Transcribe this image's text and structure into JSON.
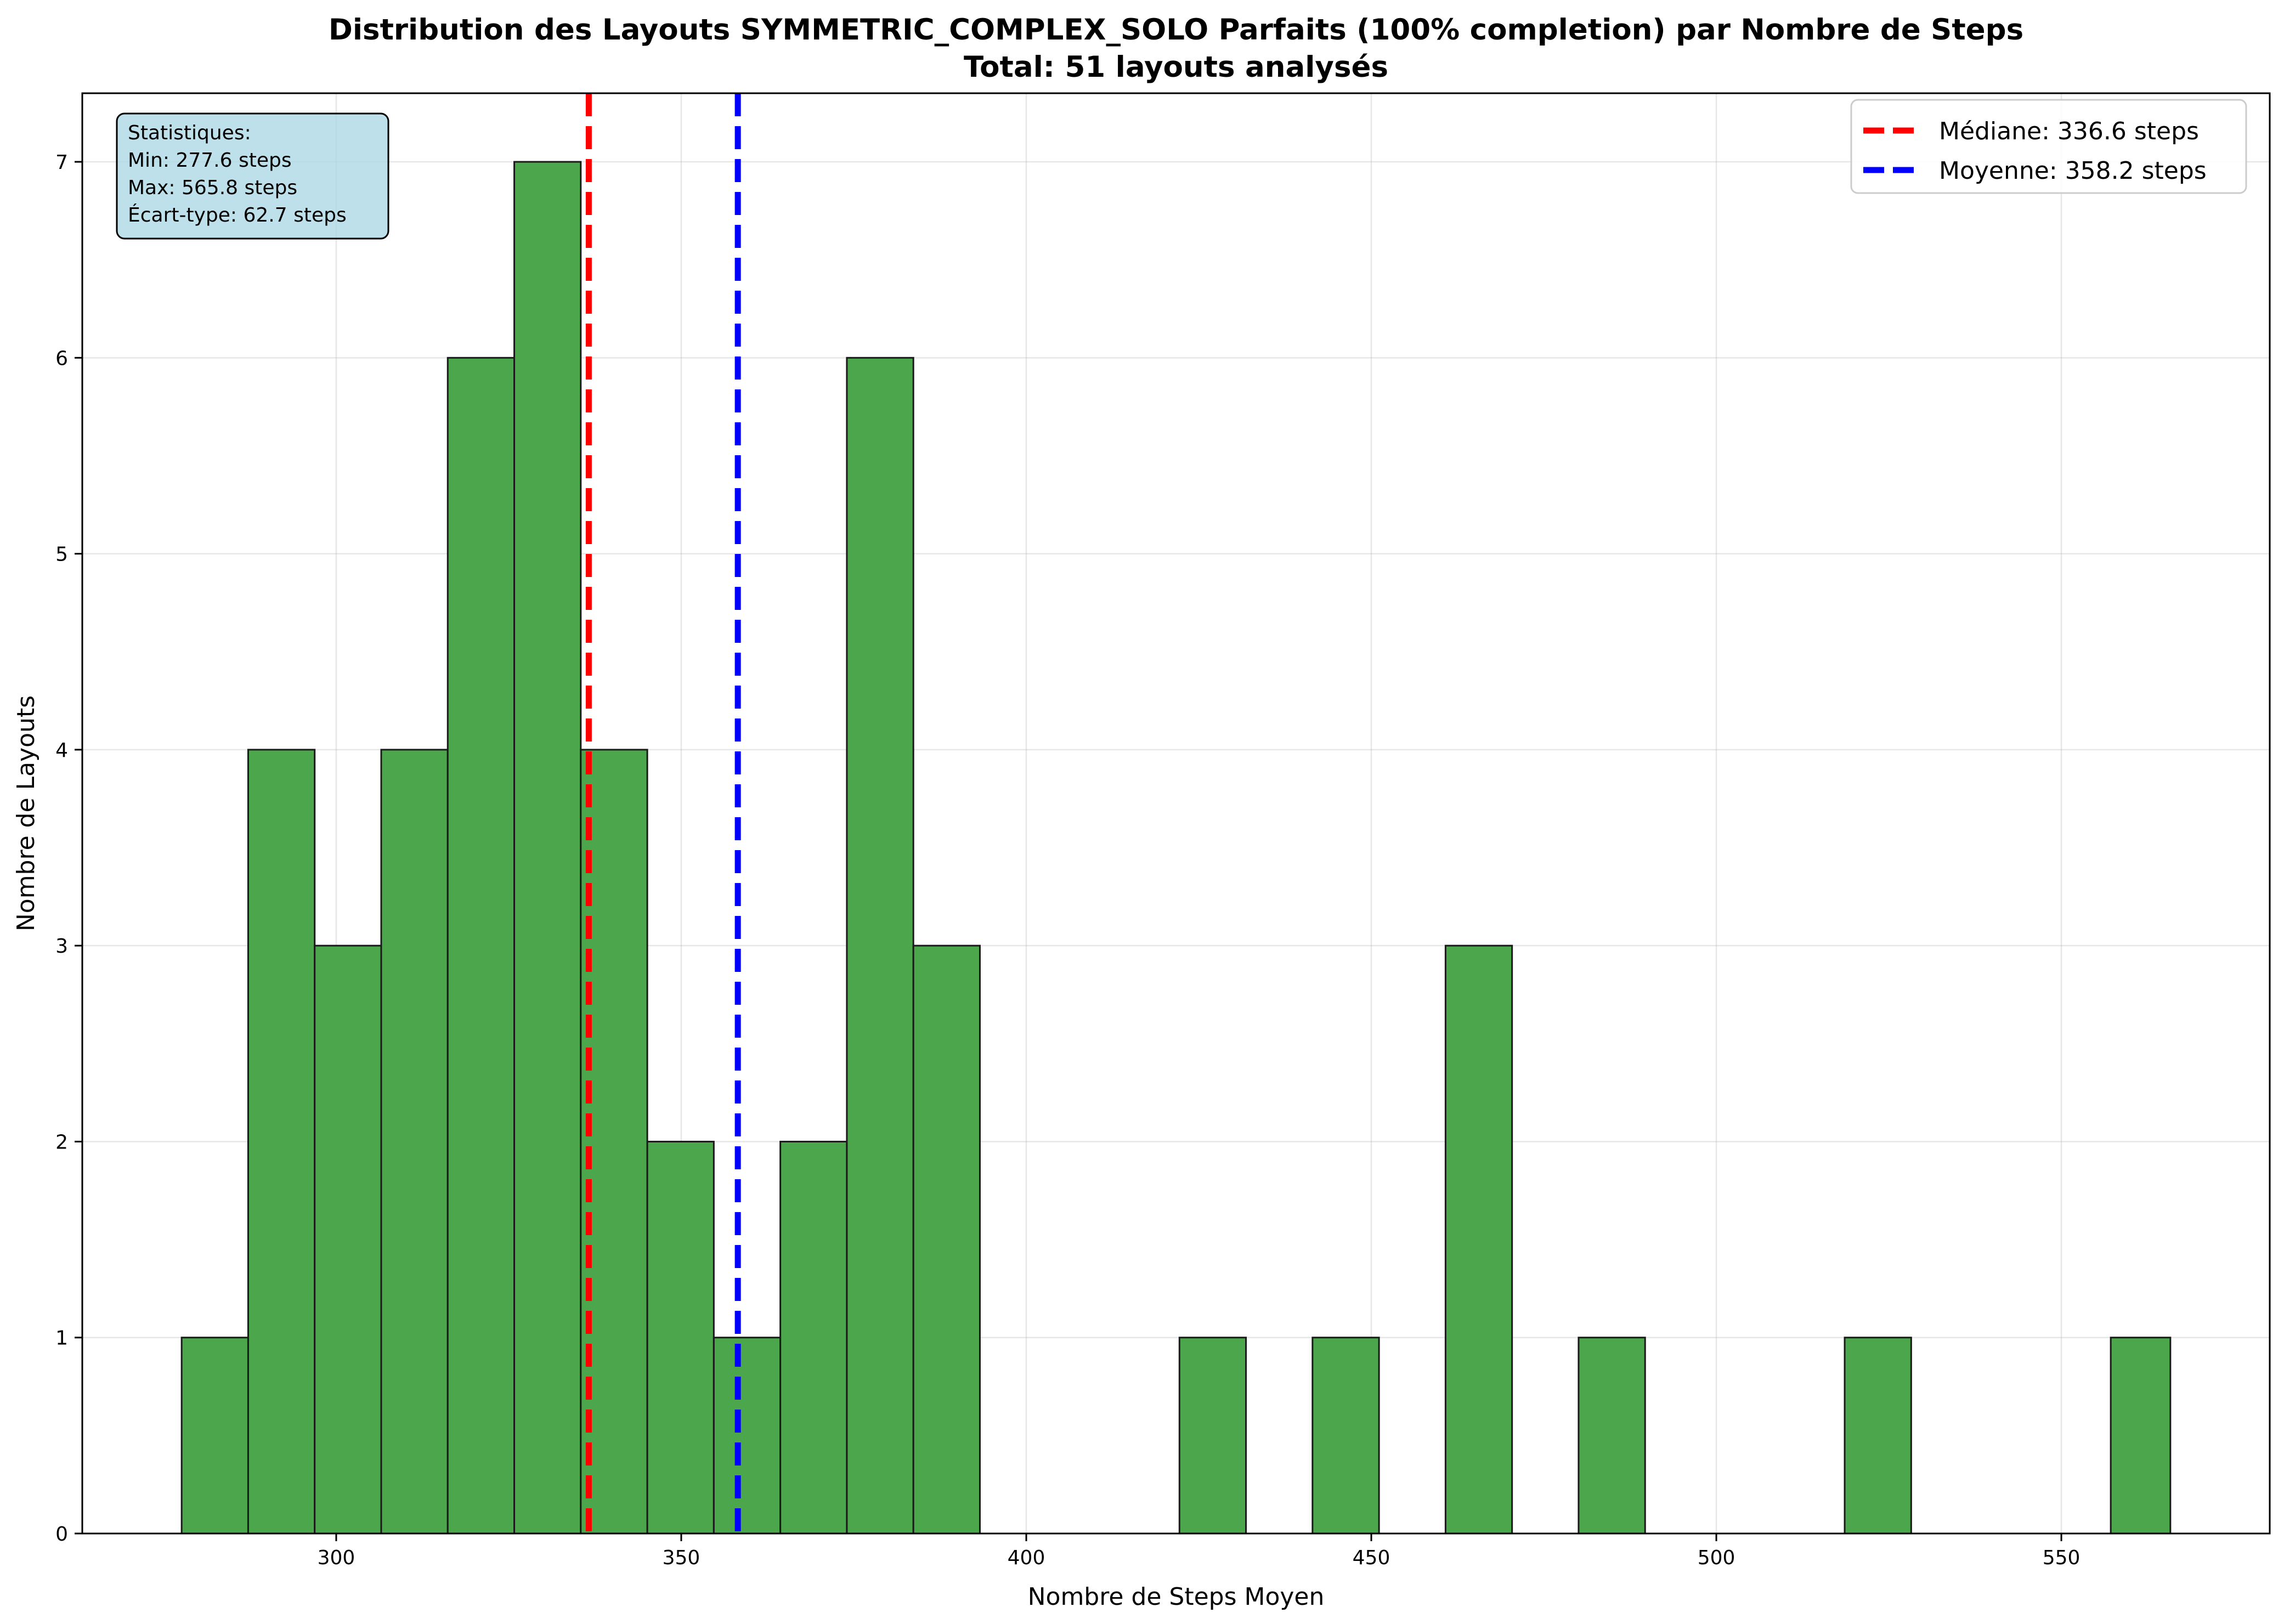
{
  "chart_data": {
    "type": "bar",
    "title": "Distribution des Layouts SYMMETRIC_COMPLEX_SOLO Parfaits (100% completion) par Nombre de Steps",
    "subtitle": "Total: 51 layouts analysés",
    "xlabel": "Nombre de Steps Moyen",
    "ylabel": "Nombre de Layouts",
    "xlim": [
      263.2,
      580.2
    ],
    "ylim": [
      0,
      7.35
    ],
    "xticks": [
      300,
      350,
      400,
      450,
      500,
      550
    ],
    "yticks": [
      0,
      1,
      2,
      3,
      4,
      5,
      6,
      7
    ],
    "grid": true,
    "bar_color": "#4ca64c",
    "bin_edges": [
      277.6,
      287.24,
      296.88,
      306.52,
      316.16,
      325.8,
      335.44,
      345.08,
      354.72,
      364.36,
      374.0,
      383.64,
      393.28,
      402.92,
      412.56,
      422.2,
      431.84,
      441.48,
      451.12,
      460.76,
      470.4,
      480.04,
      489.68,
      499.32,
      508.96,
      518.6,
      528.24,
      537.88,
      547.52,
      557.16,
      565.8
    ],
    "counts": [
      1,
      4,
      3,
      4,
      6,
      7,
      4,
      2,
      1,
      2,
      6,
      3,
      0,
      0,
      0,
      1,
      0,
      1,
      0,
      3,
      0,
      1,
      0,
      0,
      0,
      1,
      0,
      0,
      0,
      1
    ],
    "vlines": [
      {
        "label": "Médiane: 336.6 steps",
        "x": 336.6,
        "color": "#ff0000"
      },
      {
        "label": "Moyenne: 358.2 steps",
        "x": 358.2,
        "color": "#0000ff"
      }
    ],
    "legend_position": "top-right",
    "stats_box": {
      "lines": [
        "Statistiques:",
        "Min: 277.6 steps",
        "Max: 565.8 steps",
        "Écart-type: 62.7 steps"
      ],
      "position": "top-left",
      "background": "#add8e6"
    }
  }
}
